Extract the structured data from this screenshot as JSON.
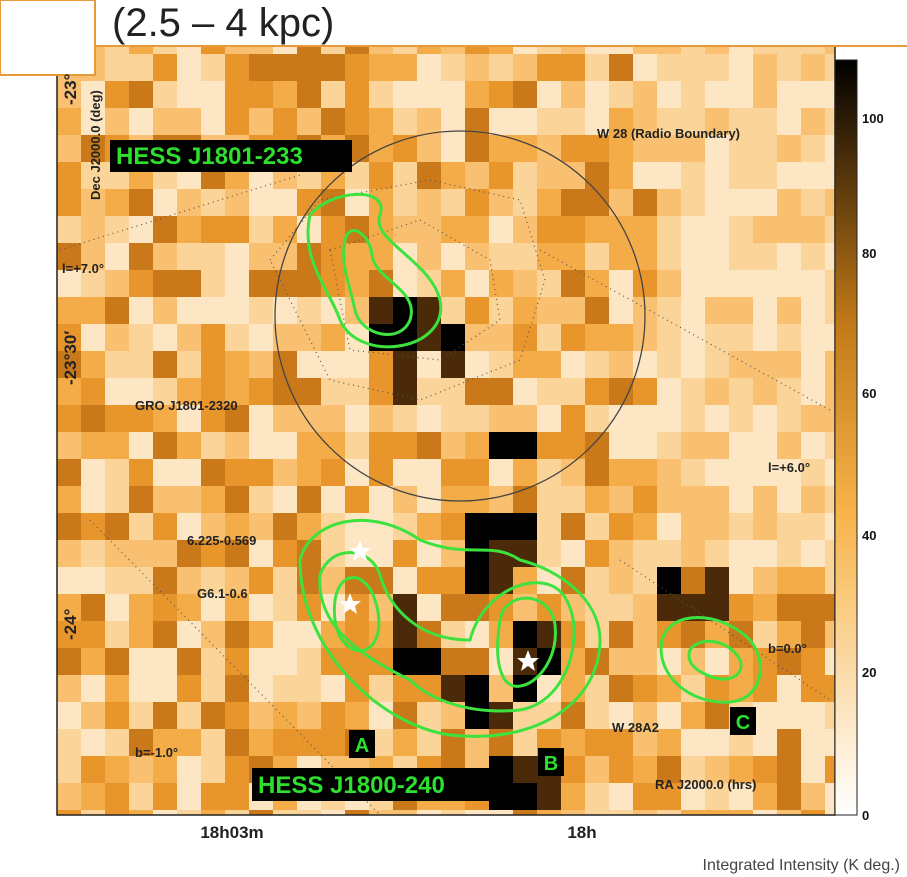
{
  "title": "(2.5 – 4 kpc)",
  "axes": {
    "y_label": "Dec J2000.0 (deg)",
    "x_label": "RA J2000.0 (hrs)",
    "y_ticks": [
      "-23°",
      "-23°30′",
      "-24°"
    ],
    "x_ticks": [
      "18h03m",
      "18h"
    ]
  },
  "sources": {
    "north": "HESS J1801-233",
    "south": "HESS J1800-240",
    "a": "A",
    "b": "B",
    "c": "C"
  },
  "annotations": {
    "w28": "W 28 (Radio Boundary)",
    "l7": "l=+7.0°",
    "gro": "GRO J1801-2320",
    "l6": "l=+6.0°",
    "g6225": "6.225-0.569",
    "g61": "G6.1-0.6",
    "b0": "b=0.0°",
    "w28a2": "W 28A2",
    "bm1": "b=-1.0°"
  },
  "colorbar": {
    "labels": [
      "100",
      "80",
      "60",
      "40",
      "20",
      "0"
    ],
    "title": "Integrated Intensity (K deg.)"
  }
}
